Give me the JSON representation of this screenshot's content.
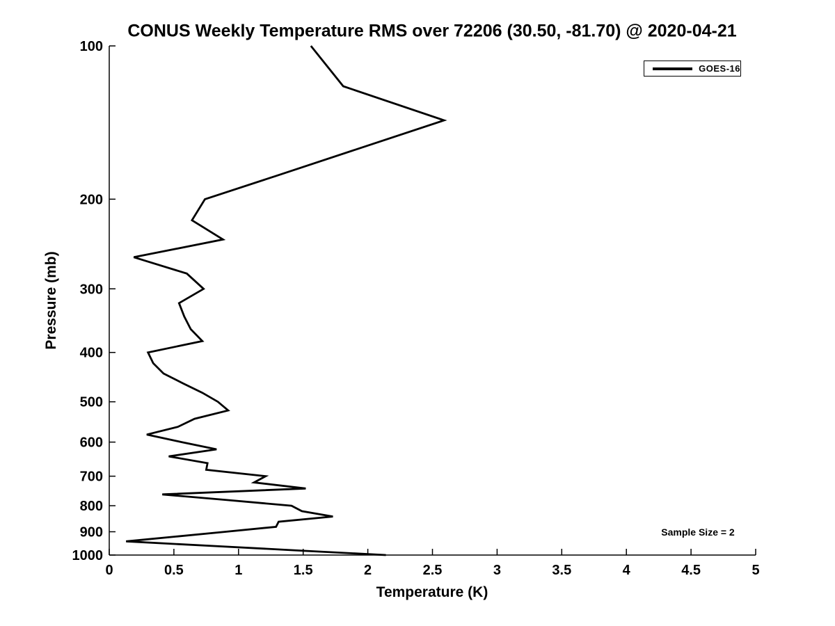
{
  "title": "CONUS Weekly Temperature RMS over 72206 (30.50, -81.70) @ 2020-04-21",
  "annotation": "Sample Size = 2",
  "legend": {
    "position": "top-right",
    "entries": [
      {
        "label": "GOES-16",
        "color": "#000000"
      }
    ]
  },
  "colors": {
    "background": "#ffffff",
    "axis": "#000000",
    "line": "#000000",
    "text": "#000000"
  },
  "chart_data": {
    "type": "line",
    "title": "CONUS Weekly Temperature RMS over 72206 (30.50, -81.70) @ 2020-04-21",
    "xlabel": "Temperature (K)",
    "ylabel": "Pressure (mb)",
    "xlim": [
      0,
      5
    ],
    "ylim": [
      100,
      1000
    ],
    "y_scale": "log",
    "y_inverted": true,
    "grid": false,
    "legend_position": "top-right",
    "xticks": [
      {
        "v": 0,
        "label": "0"
      },
      {
        "v": 0.5,
        "label": "0.5"
      },
      {
        "v": 1,
        "label": "1"
      },
      {
        "v": 1.5,
        "label": "1.5"
      },
      {
        "v": 2,
        "label": "2"
      },
      {
        "v": 2.5,
        "label": "2.5"
      },
      {
        "v": 3,
        "label": "3"
      },
      {
        "v": 3.5,
        "label": "3.5"
      },
      {
        "v": 4,
        "label": "4"
      },
      {
        "v": 4.5,
        "label": "4.5"
      },
      {
        "v": 5,
        "label": "5"
      }
    ],
    "yticks": [
      {
        "v": 100,
        "label": "100"
      },
      {
        "v": 200,
        "label": "200"
      },
      {
        "v": 300,
        "label": "300"
      },
      {
        "v": 400,
        "label": "400"
      },
      {
        "v": 500,
        "label": "500"
      },
      {
        "v": 600,
        "label": "600"
      },
      {
        "v": 700,
        "label": "700"
      },
      {
        "v": 800,
        "label": "800"
      },
      {
        "v": 900,
        "label": "900"
      },
      {
        "v": 1000,
        "label": "1000"
      }
    ],
    "series": [
      {
        "name": "GOES-16",
        "color": "#000000",
        "line_width": 2.8,
        "pressure_mb": [
          100,
          120,
          140,
          160,
          180,
          200,
          220,
          240,
          260,
          280,
          300,
          320,
          340,
          360,
          380,
          400,
          420,
          440,
          460,
          480,
          500,
          520,
          540,
          560,
          580,
          600,
          620,
          640,
          660,
          680,
          700,
          720,
          740,
          760,
          780,
          800,
          820,
          840,
          860,
          880,
          900,
          920,
          940,
          960,
          980,
          1000
        ],
        "rms_k": [
          1.56,
          1.81,
          2.59,
          1.9,
          1.29,
          0.74,
          0.64,
          0.88,
          0.19,
          0.6,
          0.73,
          0.54,
          0.58,
          0.63,
          0.72,
          0.3,
          0.34,
          0.42,
          0.57,
          0.72,
          0.84,
          0.92,
          0.66,
          0.53,
          0.29,
          0.56,
          0.83,
          0.46,
          0.76,
          0.75,
          1.21,
          1.12,
          1.52,
          0.41,
          0.92,
          1.41,
          1.49,
          1.73,
          1.31,
          1.29,
          0.9,
          0.51,
          0.13,
          0.81,
          1.48,
          2.14
        ]
      }
    ],
    "annotations": [
      "Sample Size = 2"
    ]
  }
}
